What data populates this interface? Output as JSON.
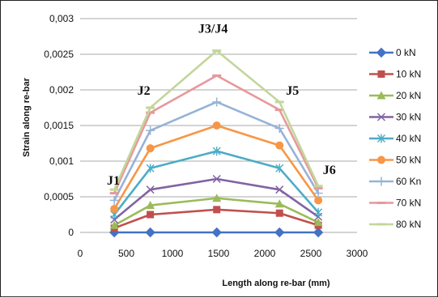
{
  "chart_data": {
    "type": "line",
    "xlabel": "Length along re-bar (mm)",
    "ylabel": "Strain along re-bar",
    "xlim": [
      0,
      3000
    ],
    "ylim": [
      0,
      0.003
    ],
    "xticks": [
      0,
      500,
      1000,
      1500,
      2000,
      2500,
      3000
    ],
    "xtick_labels": [
      "0",
      "500",
      "1000",
      "1500",
      "2000",
      "2500",
      "3000"
    ],
    "yticks": [
      0,
      0.0005,
      0.001,
      0.0015,
      0.002,
      0.0025,
      0.003
    ],
    "ytick_labels": [
      "0",
      "0,0005",
      "0,001",
      "0,0015",
      "0,002",
      "0,0025",
      "0,003"
    ],
    "grid": "horizontal",
    "legend_position": "right",
    "x": [
      370,
      760,
      1480,
      2160,
      2580
    ],
    "series": [
      {
        "name": "0 kN",
        "color": "#4472c4",
        "marker": "diamond",
        "values": [
          0,
          0,
          0,
          0,
          0
        ]
      },
      {
        "name": "10 kN",
        "color": "#c0504d",
        "marker": "square",
        "values": [
          6e-05,
          0.00025,
          0.00032,
          0.00027,
          0.0001
        ]
      },
      {
        "name": "20 kN",
        "color": "#9bbb59",
        "marker": "triangle",
        "values": [
          0.0001,
          0.00038,
          0.00048,
          0.0004,
          0.00014
        ]
      },
      {
        "name": "30 kN",
        "color": "#8064a2",
        "marker": "x",
        "values": [
          0.00018,
          0.0006,
          0.00075,
          0.0006,
          0.00022
        ]
      },
      {
        "name": "40 kN",
        "color": "#4bacc6",
        "marker": "star",
        "values": [
          0.00025,
          0.0009,
          0.00114,
          0.0009,
          0.00028
        ]
      },
      {
        "name": "50 kN",
        "color": "#f79646",
        "marker": "circle",
        "values": [
          0.00033,
          0.00118,
          0.0015,
          0.00122,
          0.00045
        ]
      },
      {
        "name": "60 Kn",
        "color": "#95b3d7",
        "marker": "plus",
        "values": [
          0.00045,
          0.00143,
          0.00183,
          0.00146,
          0.00055
        ]
      },
      {
        "name": "70 kN",
        "color": "#e6999b",
        "marker": "dash",
        "values": [
          0.00055,
          0.00168,
          0.0022,
          0.00172,
          0.00062
        ]
      },
      {
        "name": "80 kN",
        "color": "#c3d69b",
        "marker": "dash",
        "values": [
          0.0006,
          0.00175,
          0.00255,
          0.00183,
          0.00065
        ]
      }
    ],
    "annotations": [
      {
        "text": "J1",
        "x": 360,
        "y": 0.00067
      },
      {
        "text": "J2",
        "x": 690,
        "y": 0.00193
      },
      {
        "text": "J3/J4",
        "x": 1440,
        "y": 0.0028
      },
      {
        "text": "J5",
        "x": 2300,
        "y": 0.00193
      },
      {
        "text": "J6",
        "x": 2700,
        "y": 0.00082
      }
    ]
  }
}
